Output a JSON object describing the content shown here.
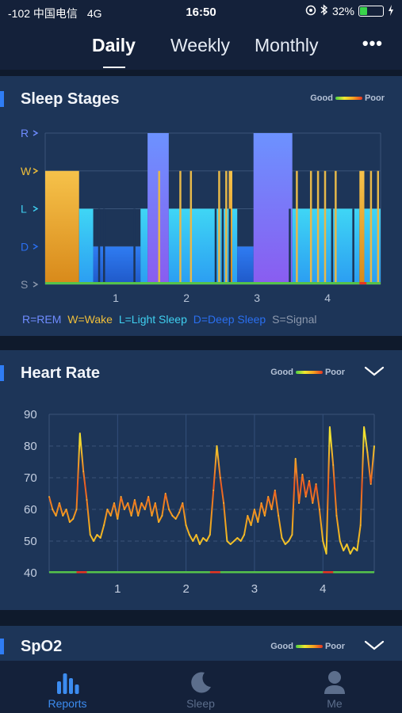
{
  "status_bar": {
    "carrier": "-102 中国电信",
    "network": "4G",
    "time": "16:50",
    "battery": "32%",
    "battery_level": 0.32
  },
  "nav": {
    "tabs": [
      "Daily",
      "Weekly",
      "Monthly"
    ],
    "active_tab": "Daily",
    "more_icon": "more-icon"
  },
  "scale_legend": {
    "good": "Good",
    "poor": "Poor"
  },
  "sleep_stages": {
    "title": "Sleep Stages",
    "legend": [
      {
        "text": "R=REM",
        "color": "#6f8cff"
      },
      {
        "text": "W=Wake",
        "color": "#f0bf3a"
      },
      {
        "text": "L=Light Sleep",
        "color": "#3fd0f0"
      },
      {
        "text": "D=Deep Sleep",
        "color": "#2a6ff0"
      },
      {
        "text": "S=Signal",
        "color": "#8c98ad"
      }
    ]
  },
  "heart_rate": {
    "title": "Heart Rate"
  },
  "spo2": {
    "title": "SpO2"
  },
  "chart_data": [
    {
      "type": "area",
      "name": "Sleep Stages",
      "y_categories": [
        "S",
        "D",
        "L",
        "W",
        "R"
      ],
      "x_ticks": [
        "1",
        "2",
        "3",
        "4"
      ],
      "xlim": [
        0,
        4.75
      ],
      "segments": [
        {
          "start": 0.0,
          "end": 0.48,
          "stage": "W"
        },
        {
          "start": 0.48,
          "end": 0.68,
          "stage": "L"
        },
        {
          "start": 0.68,
          "end": 1.05,
          "stage": "D"
        },
        {
          "start": 1.05,
          "end": 1.35,
          "stage": "D"
        },
        {
          "start": 1.35,
          "end": 1.45,
          "stage": "L"
        },
        {
          "start": 1.45,
          "end": 1.75,
          "stage": "R"
        },
        {
          "start": 1.75,
          "end": 2.6,
          "stage": "L"
        },
        {
          "start": 2.6,
          "end": 2.65,
          "stage": "W"
        },
        {
          "start": 2.65,
          "end": 2.72,
          "stage": "L"
        },
        {
          "start": 2.72,
          "end": 2.95,
          "stage": "D"
        },
        {
          "start": 2.95,
          "end": 3.5,
          "stage": "R"
        },
        {
          "start": 3.5,
          "end": 4.45,
          "stage": "L"
        },
        {
          "start": 4.45,
          "end": 4.52,
          "stage": "W"
        },
        {
          "start": 4.52,
          "end": 4.75,
          "stage": "L"
        }
      ],
      "wake_spikes": [
        1.6,
        1.9,
        2.05,
        2.45,
        2.55,
        3.55,
        3.75,
        3.85,
        3.95,
        4.1,
        4.6,
        4.7
      ],
      "dips": [
        0.75,
        0.82,
        1.25,
        2.4,
        2.5,
        2.6,
        3.45,
        4.05,
        4.35
      ]
    },
    {
      "type": "line",
      "name": "Heart Rate",
      "ylim": [
        40,
        90
      ],
      "y_ticks": [
        40,
        50,
        60,
        70,
        80,
        90
      ],
      "x_ticks": [
        "1",
        "2",
        "3",
        "4"
      ],
      "xlim": [
        0,
        4.75
      ],
      "points": [
        [
          0.0,
          64
        ],
        [
          0.05,
          60
        ],
        [
          0.1,
          58
        ],
        [
          0.15,
          62
        ],
        [
          0.2,
          58
        ],
        [
          0.25,
          60
        ],
        [
          0.3,
          56
        ],
        [
          0.35,
          57
        ],
        [
          0.4,
          60
        ],
        [
          0.45,
          84
        ],
        [
          0.5,
          72
        ],
        [
          0.55,
          63
        ],
        [
          0.6,
          52
        ],
        [
          0.65,
          50
        ],
        [
          0.7,
          52
        ],
        [
          0.75,
          51
        ],
        [
          0.8,
          55
        ],
        [
          0.85,
          60
        ],
        [
          0.9,
          58
        ],
        [
          0.95,
          62
        ],
        [
          1.0,
          57
        ],
        [
          1.05,
          64
        ],
        [
          1.1,
          60
        ],
        [
          1.15,
          62
        ],
        [
          1.2,
          58
        ],
        [
          1.25,
          63
        ],
        [
          1.3,
          58
        ],
        [
          1.35,
          62
        ],
        [
          1.4,
          60
        ],
        [
          1.45,
          64
        ],
        [
          1.5,
          58
        ],
        [
          1.55,
          62
        ],
        [
          1.6,
          56
        ],
        [
          1.65,
          58
        ],
        [
          1.7,
          65
        ],
        [
          1.75,
          60
        ],
        [
          1.8,
          58
        ],
        [
          1.85,
          57
        ],
        [
          1.9,
          59
        ],
        [
          1.95,
          62
        ],
        [
          2.0,
          55
        ],
        [
          2.05,
          52
        ],
        [
          2.1,
          50
        ],
        [
          2.15,
          52
        ],
        [
          2.2,
          49
        ],
        [
          2.25,
          51
        ],
        [
          2.3,
          50
        ],
        [
          2.35,
          52
        ],
        [
          2.4,
          66
        ],
        [
          2.45,
          80
        ],
        [
          2.5,
          70
        ],
        [
          2.55,
          62
        ],
        [
          2.6,
          50
        ],
        [
          2.65,
          49
        ],
        [
          2.7,
          50
        ],
        [
          2.75,
          51
        ],
        [
          2.8,
          50
        ],
        [
          2.85,
          52
        ],
        [
          2.9,
          58
        ],
        [
          2.95,
          55
        ],
        [
          3.0,
          60
        ],
        [
          3.05,
          56
        ],
        [
          3.1,
          62
        ],
        [
          3.15,
          58
        ],
        [
          3.2,
          64
        ],
        [
          3.25,
          60
        ],
        [
          3.3,
          66
        ],
        [
          3.35,
          58
        ],
        [
          3.4,
          51
        ],
        [
          3.45,
          49
        ],
        [
          3.5,
          50
        ],
        [
          3.55,
          52
        ],
        [
          3.6,
          76
        ],
        [
          3.65,
          62
        ],
        [
          3.7,
          71
        ],
        [
          3.75,
          64
        ],
        [
          3.8,
          69
        ],
        [
          3.85,
          62
        ],
        [
          3.9,
          68
        ],
        [
          3.95,
          60
        ],
        [
          4.0,
          50
        ],
        [
          4.05,
          46
        ],
        [
          4.1,
          86
        ],
        [
          4.15,
          74
        ],
        [
          4.2,
          58
        ],
        [
          4.25,
          50
        ],
        [
          4.3,
          47
        ],
        [
          4.35,
          49
        ],
        [
          4.4,
          46
        ],
        [
          4.45,
          48
        ],
        [
          4.5,
          47
        ],
        [
          4.55,
          55
        ],
        [
          4.6,
          86
        ],
        [
          4.65,
          78
        ],
        [
          4.7,
          68
        ],
        [
          4.75,
          80
        ]
      ]
    }
  ]
}
